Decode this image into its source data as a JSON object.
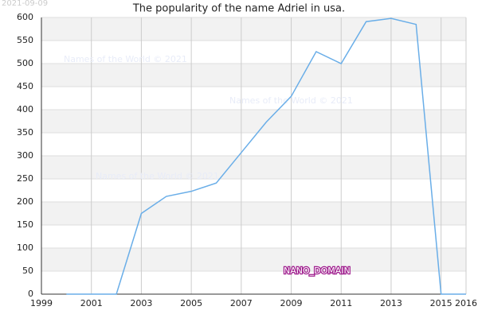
{
  "chart_data": {
    "type": "line",
    "title": "The popularity of the name Adriel in usa.",
    "date_stamp": "2021-09-09",
    "watermarks": [
      "Names of the World © 2021",
      "Names of the World © 2021",
      "Names of the World © 2021"
    ],
    "source_label": "NANO_DOMAIN",
    "x": [
      2000,
      2001,
      2002,
      2003,
      2004,
      2005,
      2006,
      2007,
      2008,
      2009,
      2010,
      2011,
      2012,
      2013,
      2014,
      2015,
      2016
    ],
    "series": [
      {
        "name": "Adriel",
        "color": "#6aaee8",
        "values": [
          0,
          0,
          0,
          175,
          212,
          223,
          241,
          307,
          373,
          429,
          526,
          500,
          591,
          598,
          585,
          0,
          0
        ]
      }
    ],
    "xlim": [
      1999,
      2016
    ],
    "xticks": [
      1999,
      2001,
      2003,
      2005,
      2007,
      2009,
      2011,
      2013,
      2015,
      2016
    ],
    "ylim": [
      0,
      600
    ],
    "yticks": [
      0,
      50,
      100,
      150,
      200,
      250,
      300,
      350,
      400,
      450,
      500,
      550,
      600
    ],
    "grid": true,
    "bands": true
  }
}
